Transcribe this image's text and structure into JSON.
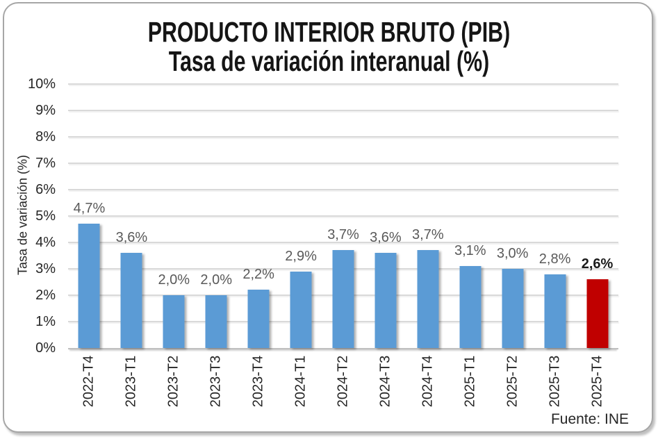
{
  "frame": {
    "border_color": "#a6a6a6"
  },
  "chart_data": {
    "type": "bar",
    "title": "PRODUCTO INTERIOR BRUTO (PIB)",
    "subtitle": "Tasa de variación interanual (%)",
    "ylabel": "Tasa de variación (%)",
    "ylim": [
      0,
      10
    ],
    "ytick_step": 1,
    "ytick_labels": [
      "0%",
      "1%",
      "2%",
      "3%",
      "4%",
      "5%",
      "6%",
      "7%",
      "8%",
      "9%",
      "10%"
    ],
    "grid": true,
    "legend": false,
    "categories": [
      "2022-T4",
      "2023-T1",
      "2023-T2",
      "2023-T3",
      "2023-T4",
      "2024-T1",
      "2024-T2",
      "2024-T3",
      "2024-T4",
      "2025-T1",
      "2025-T2",
      "2025-T3",
      "2025-T4"
    ],
    "values": [
      4.7,
      3.6,
      2.0,
      2.0,
      2.2,
      2.9,
      3.7,
      3.6,
      3.7,
      3.1,
      3.0,
      2.8,
      2.6
    ],
    "value_labels": [
      "4,7%",
      "3,6%",
      "2,0%",
      "2,0%",
      "2,2%",
      "2,9%",
      "3,7%",
      "3,6%",
      "3,7%",
      "3,1%",
      "3,0%",
      "2,8%",
      "2,6%"
    ],
    "bar_color": "#5B9BD5",
    "highlight_color": "#C00000",
    "highlight_index": 12,
    "source": "Fuente: INE",
    "colors": {
      "gridline": "#d9d9d9",
      "axis_line": "#bfbfbf",
      "value_label": "#595959",
      "highlight_label": "#1a1a1a",
      "tick_label": "#262626",
      "title": "#151515"
    }
  }
}
